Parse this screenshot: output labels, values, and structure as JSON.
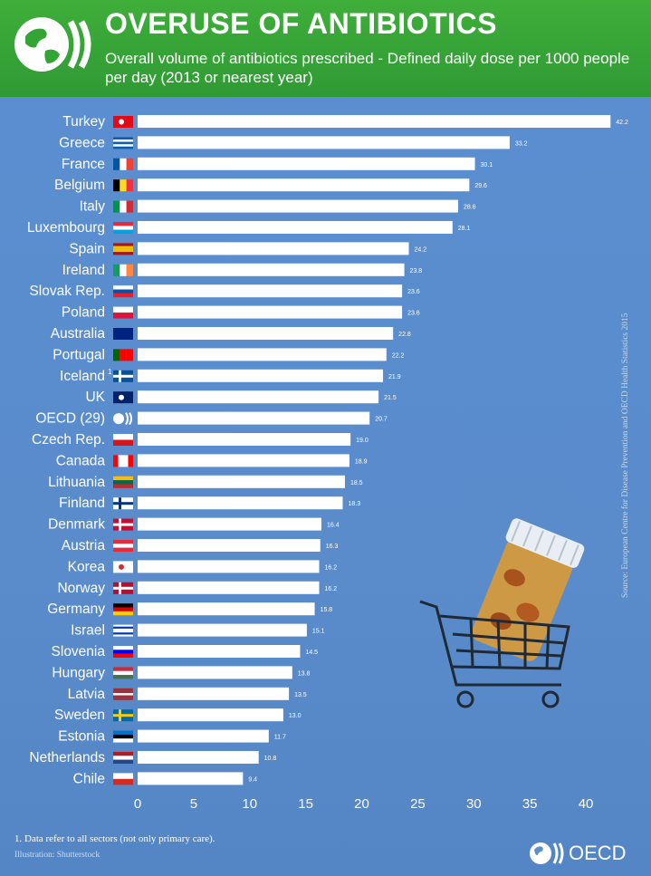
{
  "header": {
    "title": "OVERUSE OF ANTIBIOTICS",
    "subtitle": "Overall volume of antibiotics prescribed - Defined daily dose per 1000 people per day (2013 or nearest year)"
  },
  "colors": {
    "header_green": "#35a436",
    "plot_blue": "#5b8fce",
    "bar": "#ffffff"
  },
  "chart_data": {
    "type": "bar",
    "orientation": "horizontal",
    "categories": [
      "Turkey",
      "Greece",
      "France",
      "Belgium",
      "Italy",
      "Luxembourg",
      "Spain",
      "Ireland",
      "Slovak Rep.",
      "Poland",
      "Australia",
      "Portugal",
      "Iceland",
      "UK",
      "OECD (29)",
      "Czech Rep.",
      "Canada",
      "Lithuania",
      "Finland",
      "Denmark",
      "Austria",
      "Korea",
      "Norway",
      "Germany",
      "Israel",
      "Slovenia",
      "Hungary",
      "Latvia",
      "Sweden",
      "Estonia",
      "Netherlands",
      "Chile"
    ],
    "values": [
      42.2,
      33.2,
      30.1,
      29.6,
      28.6,
      28.1,
      24.2,
      23.8,
      23.6,
      23.6,
      22.8,
      22.2,
      21.9,
      21.5,
      20.7,
      19.0,
      18.9,
      18.5,
      18.3,
      16.4,
      16.3,
      16.2,
      16.2,
      15.8,
      15.1,
      14.5,
      13.8,
      13.5,
      13.0,
      11.7,
      10.8,
      9.4
    ],
    "value_labels": [
      "42.2",
      "33.2",
      "30.1",
      "29.6",
      "28.6",
      "28.1",
      "24.2",
      "23.8",
      "23.6",
      "23.6",
      "22.8",
      "22.2",
      "21.9",
      "21.5",
      "20.7",
      "19.0",
      "18.9",
      "18.5",
      "18.3",
      "16.4",
      "16.3",
      "16.2",
      "16.2",
      "15.8",
      "15.1",
      "14.5",
      "13.8",
      "13.5",
      "13.0",
      "11.7",
      "10.8",
      "9.4"
    ],
    "footnote_marks": {
      "Iceland": "1"
    },
    "xlim": [
      0,
      42.5
    ],
    "xticks": [
      0,
      5,
      10,
      15,
      20,
      25,
      30,
      35,
      40
    ],
    "grid": false
  },
  "flag_icons": [
    "turkey-flag-icon",
    "greece-flag-icon",
    "france-flag-icon",
    "belgium-flag-icon",
    "italy-flag-icon",
    "luxembourg-flag-icon",
    "spain-flag-icon",
    "ireland-flag-icon",
    "slovakia-flag-icon",
    "poland-flag-icon",
    "australia-flag-icon",
    "portugal-flag-icon",
    "iceland-flag-icon",
    "uk-flag-icon",
    "oecd-logo-icon",
    "czech-flag-icon",
    "canada-flag-icon",
    "lithuania-flag-icon",
    "finland-flag-icon",
    "denmark-flag-icon",
    "austria-flag-icon",
    "korea-flag-icon",
    "norway-flag-icon",
    "germany-flag-icon",
    "israel-flag-icon",
    "slovenia-flag-icon",
    "hungary-flag-icon",
    "latvia-flag-icon",
    "sweden-flag-icon",
    "estonia-flag-icon",
    "netherlands-flag-icon",
    "chile-flag-icon"
  ],
  "source": "Source: European Centre for Disease Prevention and OECD Health Statistics 2015",
  "footnote": "1. Data refer to all sectors (not only primary care).",
  "credit": "Illustration: Shutterstock",
  "brand": {
    "text": "OECD",
    "icon": "oecd-logo-icon"
  }
}
